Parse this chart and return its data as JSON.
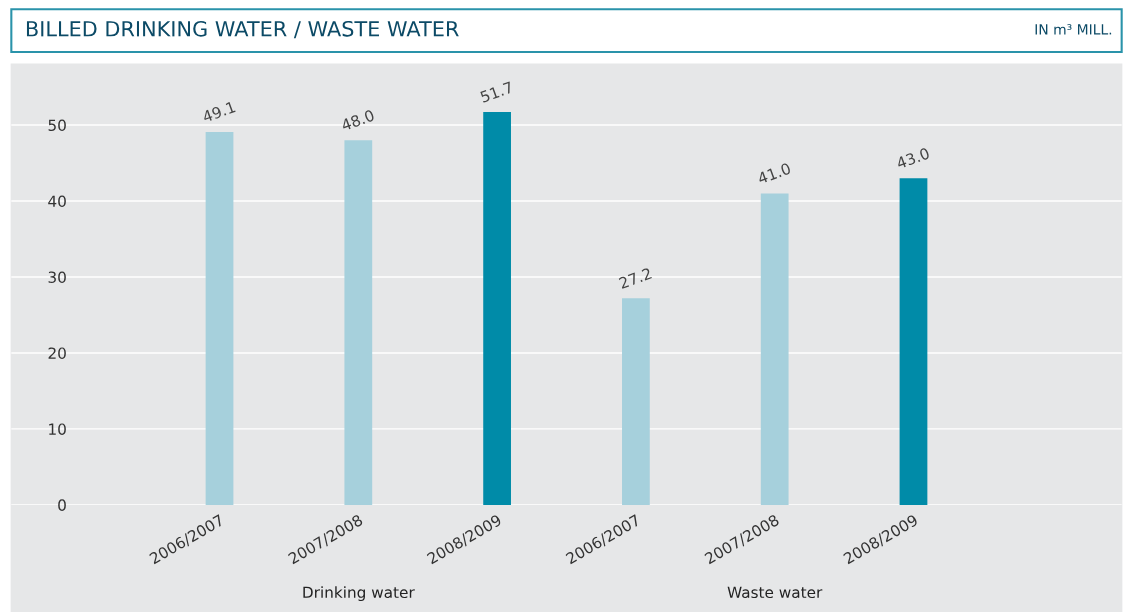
{
  "chart_data": {
    "type": "bar",
    "title": "BILLED DRINKING WATER / WASTE WATER",
    "subtitle": "IN m³ MILL.",
    "categories": [
      "2006/2007",
      "2007/2008",
      "2008/2009",
      "2006/2007",
      "2007/2008",
      "2008/2009"
    ],
    "values": [
      49.1,
      48.0,
      51.7,
      27.2,
      41.0,
      43.0
    ],
    "colors": [
      "#a6d0dc",
      "#a6d0dc",
      "#008ba8",
      "#a6d0dc",
      "#a6d0dc",
      "#008ba8"
    ],
    "annotations": [
      "Drinking water",
      "Waste water"
    ],
    "ylim": [
      0,
      58
    ],
    "yticks": [
      0,
      10,
      20,
      30,
      40,
      50
    ],
    "grid": "y",
    "value_labels": [
      "49.1",
      "48.0",
      "51.7",
      "27.2",
      "41.0",
      "43.0"
    ]
  }
}
